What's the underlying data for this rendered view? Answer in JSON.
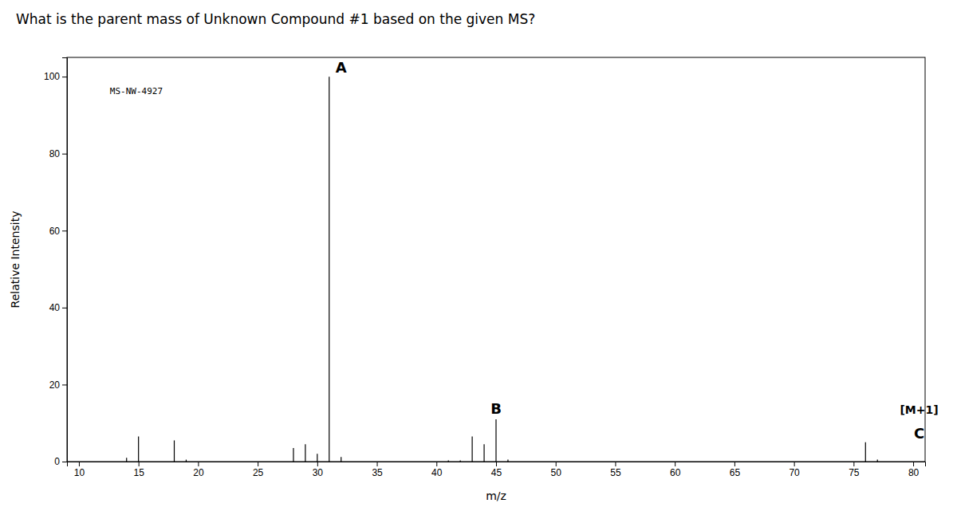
{
  "chart_data": {
    "type": "stem",
    "title": "What is the parent mass of Unknown Compound #1 based on the given MS?",
    "xlabel": "m/z",
    "ylabel": "Relative Intensity",
    "x": [
      14,
      15,
      18,
      19,
      28,
      29,
      30,
      31,
      32,
      41,
      42,
      43,
      44,
      45,
      46,
      76,
      77
    ],
    "values": [
      1.0,
      6.5,
      5.5,
      0.5,
      3.5,
      4.5,
      2.0,
      100.0,
      1.2,
      0.3,
      0.3,
      6.5,
      4.5,
      11.0,
      0.5,
      5.0,
      0.5
    ],
    "color": "#000000",
    "xlim": [
      9,
      81
    ],
    "ylim": [
      0,
      105
    ],
    "xticks": [
      10,
      15,
      20,
      25,
      30,
      35,
      40,
      45,
      50,
      55,
      60,
      65,
      70,
      75,
      80
    ],
    "yticks": [
      0,
      20,
      40,
      60,
      80,
      100
    ],
    "grid": false,
    "annotations": [
      {
        "text": "MS-NW-4927"
      },
      {
        "text": "A",
        "x": 32.0,
        "y": 101.0
      },
      {
        "text": "B",
        "x": 45.0,
        "y": 12.5
      },
      {
        "text": "[M+1]",
        "x": 80.5,
        "y": 12.5
      },
      {
        "text": "C",
        "x": 80.5,
        "y": 6.0
      }
    ]
  }
}
